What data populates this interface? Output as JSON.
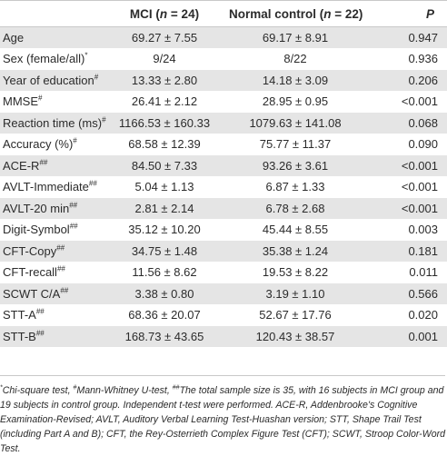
{
  "header": {
    "col1": "",
    "col2_prefix": "MCI (",
    "col2_n": "n",
    "col2_suffix": " = 24)",
    "col3_prefix": "Normal control (",
    "col3_n": "n",
    "col3_suffix": " = 22)",
    "col4": "P"
  },
  "rows": [
    {
      "label": "Age",
      "sup": "",
      "mci": "69.27 ± 7.55",
      "nc": "69.17 ± 8.91",
      "p": "0.947"
    },
    {
      "label": "Sex (female/all)",
      "sup": "*",
      "mci": "9/24",
      "nc": "8/22",
      "p": "0.936"
    },
    {
      "label": "Year of education",
      "sup": "#",
      "mci": "13.33 ± 2.80",
      "nc": "14.18 ± 3.09",
      "p": "0.206"
    },
    {
      "label": "MMSE",
      "sup": "#",
      "mci": "26.41 ± 2.12",
      "nc": "28.95 ± 0.95",
      "p": "<0.001"
    },
    {
      "label": "Reaction time (ms)",
      "sup": "#",
      "mci": "1166.53 ± 160.33",
      "nc": "1079.63 ± 141.08",
      "p": "0.068"
    },
    {
      "label": "Accuracy (%)",
      "sup": "#",
      "mci": "68.58 ± 12.39",
      "nc": "75.77 ± 11.37",
      "p": "0.090"
    },
    {
      "label": "ACE-R",
      "sup": "##",
      "mci": "84.50 ± 7.33",
      "nc": "93.26 ± 3.61",
      "p": "<0.001"
    },
    {
      "label": "AVLT-Immediate",
      "sup": "##",
      "mci": "5.04 ± 1.13",
      "nc": "6.87 ± 1.33",
      "p": "<0.001"
    },
    {
      "label": "AVLT-20 min",
      "sup": "##",
      "mci": "2.81 ± 2.14",
      "nc": "6.78 ± 2.68",
      "p": "<0.001"
    },
    {
      "label": "Digit-Symbol",
      "sup": "##",
      "mci": "35.12 ± 10.20",
      "nc": "45.44 ± 8.55",
      "p": "0.003"
    },
    {
      "label": "CFT-Copy",
      "sup": "##",
      "mci": "34.75 ± 1.48",
      "nc": "35.38 ± 1.24",
      "p": "0.181"
    },
    {
      "label": "CFT-recall",
      "sup": "##",
      "mci": "11.56 ± 8.62",
      "nc": "19.53 ± 8.22",
      "p": "0.011"
    },
    {
      "label": "SCWT C/A",
      "sup": "##",
      "mci": "3.38 ± 0.80",
      "nc": "3.19 ± 1.10",
      "p": "0.566"
    },
    {
      "label": "STT-A",
      "sup": "##",
      "mci": "68.36 ± 20.07",
      "nc": "52.67 ± 17.76",
      "p": "0.020"
    },
    {
      "label": "STT-B",
      "sup": "##",
      "mci": "168.73 ± 43.65",
      "nc": "120.43 ± 38.57",
      "p": "0.001"
    }
  ],
  "footnote": {
    "sym1": "*",
    "text1": "Chi-square test, ",
    "sym2": "#",
    "text2": "Mann-Whitney U-test, ",
    "sym3": "##",
    "text3": "The total sample size is 35, with 16 subjects in MCI group and 19 subjects in control group. Independent t-test were performed. ACE-R, Addenbrooke's Cognitive Examination-Revised; AVLT, Auditory Verbal Learning Test-Huashan version; STT, Shape Trail Test (including Part A and B); CFT, the Rey-Osterrieth Complex Figure Test (CFT); SCWT, Stroop Color-Word Test."
  }
}
